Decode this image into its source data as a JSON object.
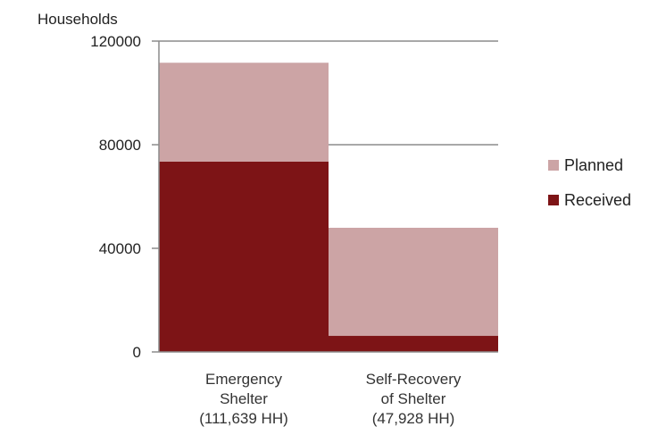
{
  "chart_data": {
    "type": "bar",
    "stacked": true,
    "ylabel": "Households",
    "ylim": [
      0,
      120000
    ],
    "yticks": [
      0,
      40000,
      80000,
      120000
    ],
    "grid": true,
    "legend_position": "right",
    "categories": [
      [
        "Emergency",
        "Shelter",
        "(111,639 HH)"
      ],
      [
        "Self-Recovery",
        "of Shelter",
        "(47,928 HH)"
      ]
    ],
    "series": [
      {
        "name": "Received",
        "color": "#7d1416",
        "values": [
          73500,
          6200
        ]
      },
      {
        "name": "Planned",
        "color": "#cca4a5",
        "values": [
          38139,
          41728
        ]
      }
    ],
    "legend_order": [
      "Planned",
      "Received"
    ],
    "gridline_color": "#8c8c8c"
  }
}
